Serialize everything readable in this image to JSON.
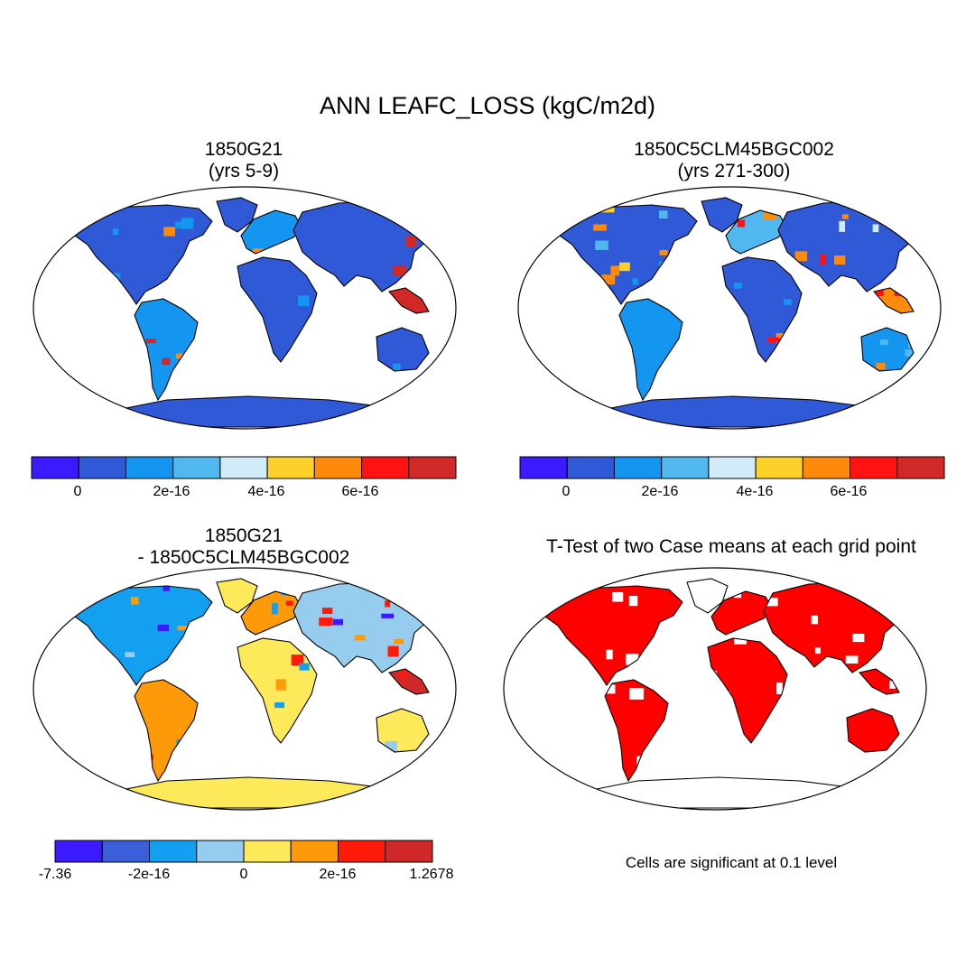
{
  "title": "ANN LEAFC_LOSS (kgC/m2d)",
  "panels": [
    {
      "id": "p1",
      "title_line1": "1850G21",
      "title_line2": "(yrs 5-9)"
    },
    {
      "id": "p2",
      "title_line1": "1850C5CLM45BGC002",
      "title_line2": "(yrs 271-300)"
    },
    {
      "id": "p3",
      "title_line1": "1850G21",
      "title_line2": "- 1850C5CLM45BGC002"
    },
    {
      "id": "p4",
      "title_line1": "T-Test of two Case means at each grid point",
      "note": "Cells are significant at 0.1 level"
    }
  ],
  "colorbars": {
    "case": {
      "colors": [
        "#3c1aff",
        "#3059d8",
        "#1496f0",
        "#50b8ef",
        "#d1ebf8",
        "#fdd02a",
        "#fd8a0c",
        "#ff1212",
        "#d12828"
      ],
      "tick_labels": [
        "0",
        "2e-16",
        "4e-16",
        "6e-16"
      ]
    },
    "diff": {
      "colors": [
        "#3c1aff",
        "#3a5fd9",
        "#14a0f0",
        "#96cdee",
        "#fde95a",
        "#fd9a0a",
        "#ff1a0a",
        "#d02828"
      ],
      "tick_labels": [
        "-7.36",
        "-2e-16",
        "0",
        "2e-16",
        "1.2678"
      ]
    }
  },
  "significance_color": "#ff0000"
}
